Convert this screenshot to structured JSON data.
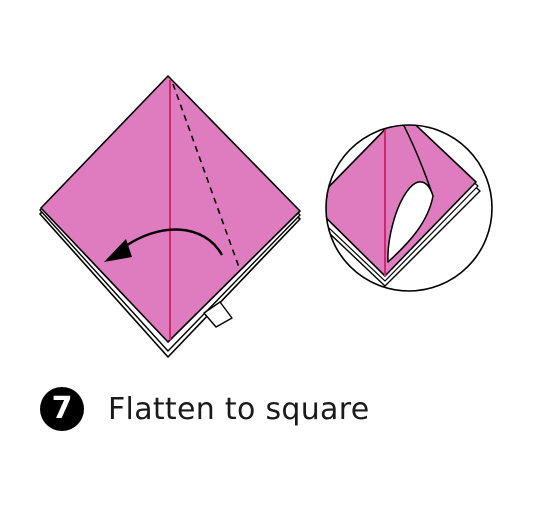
{
  "step": {
    "number": "7",
    "caption": "Flatten to square"
  },
  "colors": {
    "paper": "#df7cbf",
    "crease": "#d0286e",
    "outline": "#000000",
    "background": "#ffffff"
  },
  "icons": {
    "fold_arrow": "curved-arrow-left-icon",
    "fold_line": "dashed-valley-fold-line",
    "pocket_marker": "open-pocket-tab-icon",
    "detail_view": "magnified-detail-circle"
  }
}
